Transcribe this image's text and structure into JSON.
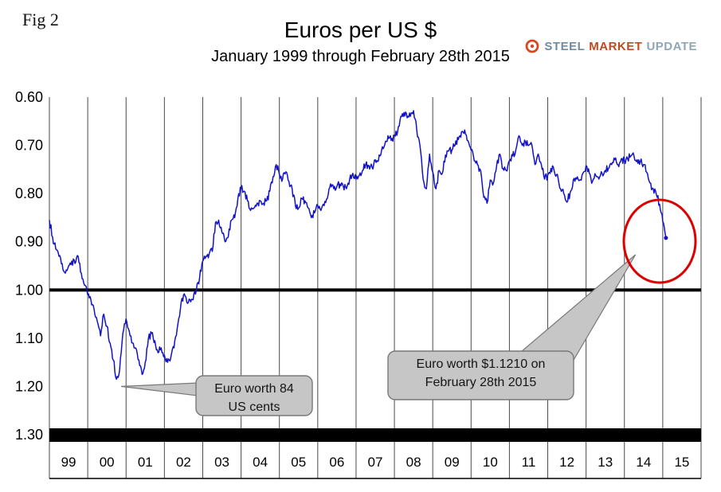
{
  "figure_label": "Fig 2",
  "logo": {
    "steel": "STEEL",
    "market": "MARKET",
    "update": "UPDATE"
  },
  "chart_data": {
    "type": "line",
    "title": "Euros per US $",
    "subtitle": "January 1999 through February 28th 2015",
    "y_axis_inverted": true,
    "ylim": [
      0.6,
      1.3
    ],
    "y_ticks": [
      "0.60",
      "0.70",
      "0.80",
      "0.90",
      "1.00",
      "1.10",
      "1.20",
      "1.30"
    ],
    "x_labels": [
      "99",
      "00",
      "01",
      "02",
      "03",
      "04",
      "05",
      "06",
      "07",
      "08",
      "09",
      "10",
      "11",
      "12",
      "13",
      "14",
      "15"
    ],
    "x_range": [
      1999,
      2016
    ],
    "grid": "vertical-only",
    "reference_line": 1.0,
    "line_color": "#1212c8",
    "highlight_color": "#dd0000",
    "callout_fill": "#c6c6c6",
    "callout_border": "#787878",
    "series": [
      {
        "name": "Euros per US $",
        "start_year": 1999,
        "interval": "monthly",
        "values": [
          0.855,
          0.89,
          0.915,
          0.93,
          0.945,
          0.965,
          0.95,
          0.94,
          0.945,
          0.93,
          0.965,
          0.99,
          1.01,
          1.02,
          1.04,
          1.065,
          1.095,
          1.05,
          1.075,
          1.11,
          1.145,
          1.185,
          1.165,
          1.09,
          1.06,
          1.085,
          1.11,
          1.12,
          1.145,
          1.175,
          1.15,
          1.1,
          1.09,
          1.105,
          1.13,
          1.12,
          1.135,
          1.15,
          1.14,
          1.12,
          1.08,
          1.04,
          1.01,
          1.025,
          1.02,
          1.02,
          1.0,
          0.975,
          0.94,
          0.93,
          0.925,
          0.92,
          0.86,
          0.855,
          0.88,
          0.9,
          0.89,
          0.855,
          0.85,
          0.81,
          0.79,
          0.795,
          0.815,
          0.835,
          0.83,
          0.82,
          0.815,
          0.82,
          0.815,
          0.795,
          0.765,
          0.74,
          0.76,
          0.77,
          0.755,
          0.775,
          0.79,
          0.825,
          0.83,
          0.81,
          0.815,
          0.83,
          0.85,
          0.84,
          0.825,
          0.835,
          0.825,
          0.81,
          0.78,
          0.79,
          0.785,
          0.78,
          0.785,
          0.79,
          0.77,
          0.758,
          0.77,
          0.762,
          0.752,
          0.74,
          0.742,
          0.745,
          0.73,
          0.732,
          0.71,
          0.698,
          0.68,
          0.69,
          0.68,
          0.672,
          0.64,
          0.632,
          0.643,
          0.64,
          0.628,
          0.668,
          0.7,
          0.77,
          0.79,
          0.718,
          0.755,
          0.79,
          0.752,
          0.758,
          0.72,
          0.712,
          0.71,
          0.7,
          0.688,
          0.672,
          0.668,
          0.69,
          0.71,
          0.732,
          0.74,
          0.752,
          0.808,
          0.82,
          0.772,
          0.778,
          0.742,
          0.718,
          0.748,
          0.752,
          0.732,
          0.722,
          0.71,
          0.68,
          0.7,
          0.692,
          0.7,
          0.698,
          0.74,
          0.718,
          0.74,
          0.77,
          0.762,
          0.748,
          0.752,
          0.76,
          0.79,
          0.8,
          0.818,
          0.798,
          0.772,
          0.77,
          0.772,
          0.758,
          0.742,
          0.758,
          0.775,
          0.762,
          0.77,
          0.758,
          0.752,
          0.748,
          0.74,
          0.73,
          0.74,
          0.728,
          0.732,
          0.728,
          0.722,
          0.722,
          0.73,
          0.733,
          0.74,
          0.756,
          0.778,
          0.79,
          0.802,
          0.822,
          0.858,
          0.892
        ]
      }
    ],
    "annotations": [
      {
        "lines": [
          "Euro worth 84",
          "US cents"
        ],
        "target": {
          "x": 2000.83,
          "y": 1.195
        }
      },
      {
        "lines": [
          "Euro worth $1.1210 on",
          "February 28th 2015"
        ],
        "target": {
          "x": 2015.08,
          "y": 0.892
        },
        "highlight": true
      }
    ]
  }
}
